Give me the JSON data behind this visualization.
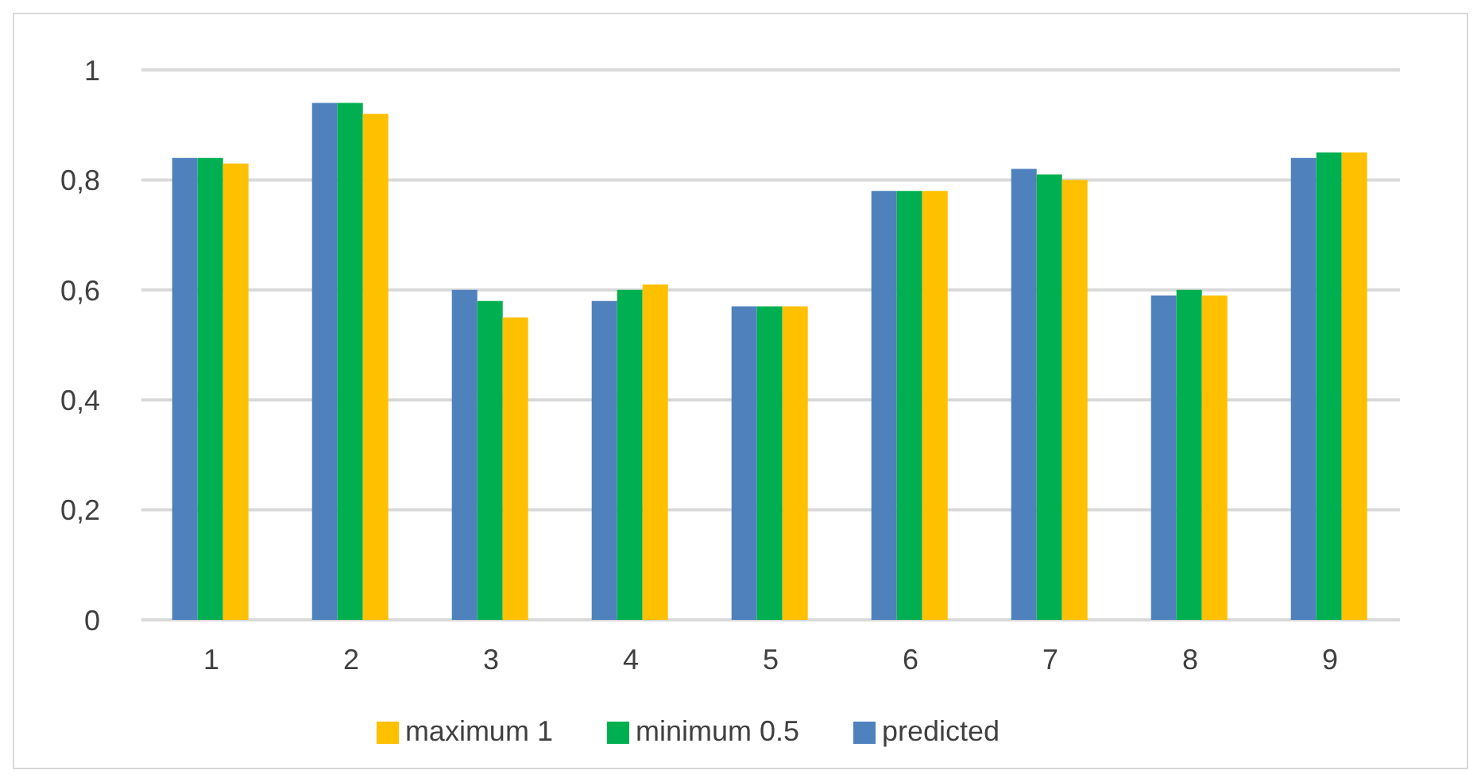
{
  "chart_data": {
    "type": "bar",
    "categories": [
      "1",
      "2",
      "3",
      "4",
      "5",
      "6",
      "7",
      "8",
      "9"
    ],
    "series": [
      {
        "name": "predicted",
        "color": "#4f81bd",
        "values": [
          0.84,
          0.94,
          0.6,
          0.58,
          0.57,
          0.78,
          0.82,
          0.59,
          0.84
        ]
      },
      {
        "name": "minimum 0.5",
        "color": "#00b050",
        "values": [
          0.84,
          0.94,
          0.58,
          0.6,
          0.57,
          0.78,
          0.81,
          0.6,
          0.85
        ]
      },
      {
        "name": "maximum 1",
        "color": "#ffc000",
        "values": [
          0.83,
          0.92,
          0.55,
          0.61,
          0.57,
          0.78,
          0.8,
          0.59,
          0.85
        ]
      }
    ],
    "ylim": [
      0,
      1
    ],
    "yticks": [
      0,
      {
        "value": 0.2,
        "label": "0,2"
      },
      {
        "value": 0.4,
        "label": "0,4"
      },
      {
        "value": 0.6,
        "label": "0,6"
      },
      {
        "value": 0.8,
        "label": "0,8"
      },
      1
    ],
    "grid": "y",
    "legend": "bottom"
  }
}
